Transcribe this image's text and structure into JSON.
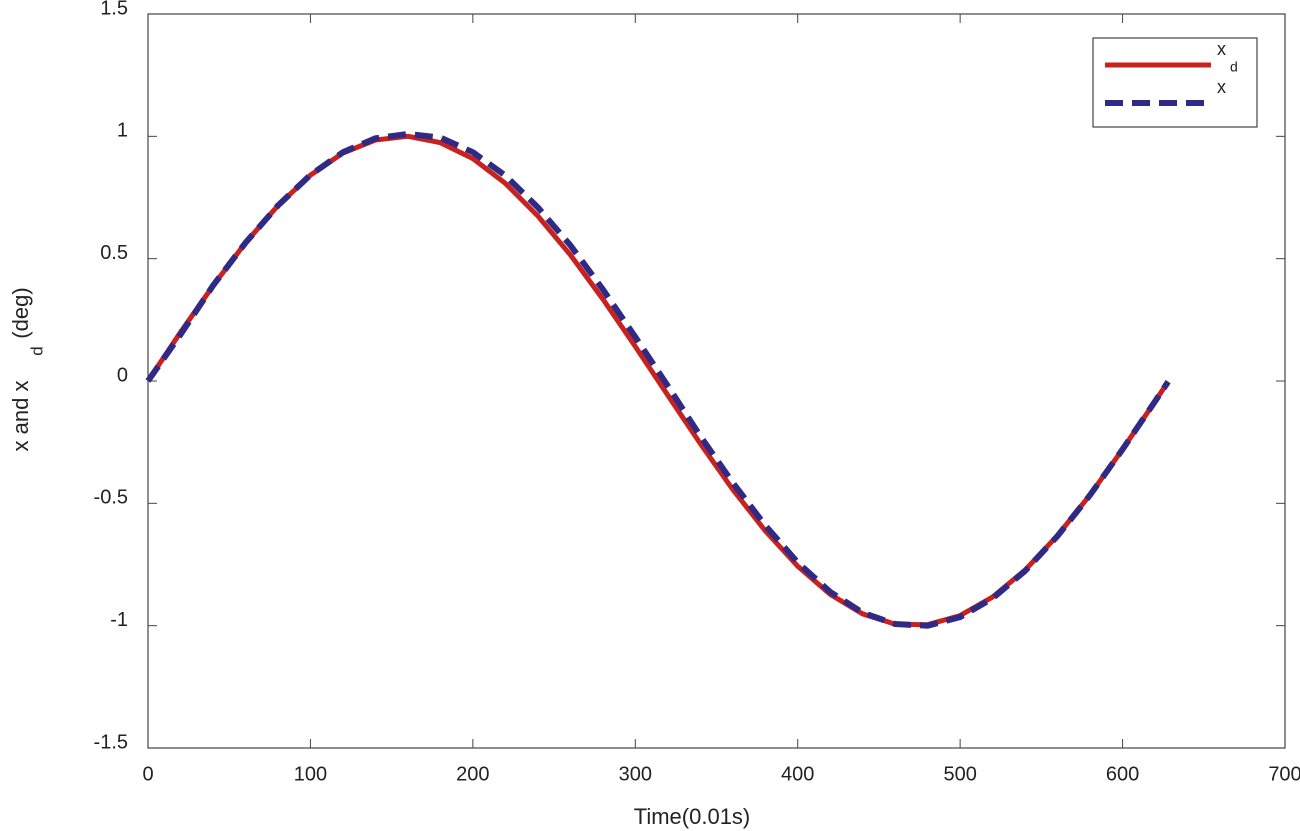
{
  "chart_data": {
    "type": "line",
    "xlabel": "Time(0.01s)",
    "ylabel": {
      "main": "x and x",
      "sub": "d",
      "unit": "(deg)"
    },
    "x": [
      0,
      20,
      40,
      60,
      80,
      100,
      120,
      140,
      160,
      180,
      200,
      220,
      240,
      260,
      280,
      300,
      320,
      340,
      360,
      380,
      400,
      420,
      440,
      460,
      480,
      500,
      520,
      540,
      560,
      580,
      600,
      620,
      628
    ],
    "series": [
      {
        "name": "x",
        "name_sub": "d",
        "color": "#c8211e",
        "dash": false,
        "values": [
          0,
          0.199,
          0.389,
          0.565,
          0.717,
          0.841,
          0.932,
          0.985,
          1.0,
          0.974,
          0.909,
          0.808,
          0.675,
          0.516,
          0.335,
          0.141,
          -0.058,
          -0.256,
          -0.443,
          -0.612,
          -0.757,
          -0.872,
          -0.952,
          -0.994,
          -0.996,
          -0.959,
          -0.883,
          -0.773,
          -0.631,
          -0.465,
          -0.279,
          -0.083,
          -0.003
        ]
      },
      {
        "name": "x",
        "color": "#2e2a85",
        "dash": true,
        "values": [
          0,
          0.19,
          0.39,
          0.565,
          0.717,
          0.842,
          0.935,
          0.992,
          1.01,
          0.995,
          0.935,
          0.84,
          0.71,
          0.555,
          0.375,
          0.18,
          -0.02,
          -0.225,
          -0.415,
          -0.59,
          -0.742,
          -0.862,
          -0.947,
          -0.993,
          -1.0,
          -0.965,
          -0.888,
          -0.776,
          -0.633,
          -0.466,
          -0.279,
          -0.083,
          -0.003
        ]
      }
    ],
    "xlim": [
      0,
      700
    ],
    "xticks": [
      0,
      100,
      200,
      300,
      400,
      500,
      600,
      700
    ],
    "ylim": [
      -1.5,
      1.5
    ],
    "yticks": [
      -1.5,
      -1,
      -0.5,
      0,
      0.5,
      1,
      1.5
    ],
    "legend": "upper right"
  }
}
